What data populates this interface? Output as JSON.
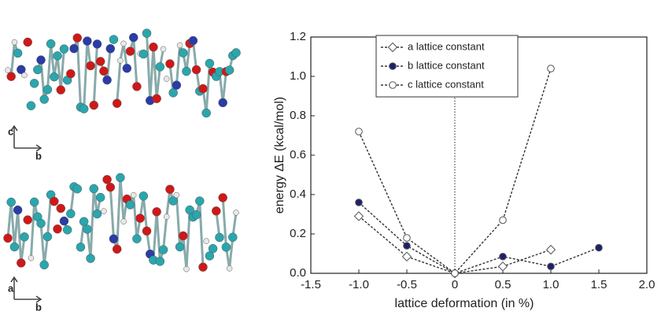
{
  "chart_data": {
    "type": "line",
    "xlabel": "lattice deformation (in %)",
    "ylabel": "energy ΔE (kcal/mol)",
    "xlim": [
      -1.5,
      2.0
    ],
    "xticks": [
      -1.5,
      {
        "value": -1,
        "label": "-1.0"
      },
      -0.5,
      0,
      0.5,
      {
        "value": 1,
        "label": "1.0"
      },
      1.5,
      {
        "value": 2,
        "label": "2.0"
      }
    ],
    "ylim": [
      0,
      1.2
    ],
    "yticks": [
      {
        "value": 0,
        "label": "0.0"
      },
      0.2,
      0.4,
      0.6,
      0.8,
      {
        "value": 1,
        "label": "1.0"
      },
      1.2
    ],
    "reference_x": 0,
    "legend": "upper center",
    "series": [
      {
        "name": "a lattice constant",
        "color": "#333333",
        "marker": "diamond",
        "fill": "#ffffff",
        "x": [
          -1,
          -0.5,
          0,
          0.5,
          1
        ],
        "values": [
          0.29,
          0.085,
          0,
          0.035,
          0.12
        ]
      },
      {
        "name": "b lattice constant",
        "color": "#333333",
        "marker": "circle",
        "fill": "#1f1f6e",
        "x": [
          -1,
          -0.5,
          0,
          0.5,
          1,
          1.5
        ],
        "values": [
          0.36,
          0.14,
          0,
          0.085,
          0.035,
          0.13
        ]
      },
      {
        "name": "c lattice constant",
        "color": "#333333",
        "marker": "circle",
        "fill": "#ffffff",
        "x": [
          -1,
          -0.5,
          0,
          0.5,
          1
        ],
        "values": [
          0.72,
          0.18,
          0,
          0.27,
          1.04
        ]
      }
    ]
  },
  "panels": [
    {
      "axes": [
        "c",
        "b"
      ]
    },
    {
      "axes": [
        "a",
        "b"
      ]
    }
  ]
}
